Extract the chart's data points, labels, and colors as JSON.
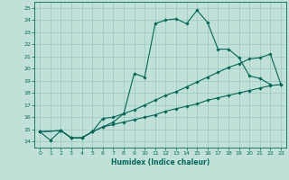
{
  "xlabel": "Humidex (Indice chaleur)",
  "bg_color": "#c0e0d8",
  "grid_color": "#98c8c0",
  "line_color": "#006858",
  "xlim": [
    -0.5,
    23.5
  ],
  "ylim": [
    13.5,
    25.5
  ],
  "xticks": [
    0,
    1,
    2,
    3,
    4,
    5,
    6,
    7,
    8,
    9,
    10,
    11,
    12,
    13,
    14,
    15,
    16,
    17,
    18,
    19,
    20,
    21,
    22,
    23
  ],
  "yticks": [
    14,
    15,
    16,
    17,
    18,
    19,
    20,
    21,
    22,
    23,
    24,
    25
  ],
  "line1_x": [
    0,
    1,
    2,
    3,
    4,
    5,
    6,
    7,
    8,
    9,
    10,
    11,
    12,
    13,
    14,
    15,
    16,
    17,
    18,
    19,
    20,
    21,
    22
  ],
  "line1_y": [
    14.8,
    14.1,
    14.9,
    14.3,
    14.3,
    14.8,
    15.9,
    16.0,
    16.3,
    19.6,
    19.3,
    23.7,
    24.0,
    24.1,
    23.7,
    24.8,
    23.8,
    21.6,
    21.6,
    20.9,
    19.4,
    19.2,
    18.7
  ],
  "line2_x": [
    0,
    2,
    3,
    4,
    5,
    6,
    7,
    8,
    9,
    10,
    11,
    12,
    13,
    14,
    15,
    16,
    17,
    18,
    19,
    20,
    21,
    22,
    23
  ],
  "line2_y": [
    14.8,
    14.9,
    14.3,
    14.3,
    14.8,
    15.2,
    15.6,
    16.3,
    16.6,
    17.0,
    17.4,
    17.8,
    18.1,
    18.5,
    18.9,
    19.3,
    19.7,
    20.1,
    20.4,
    20.8,
    20.9,
    21.2,
    18.7
  ],
  "line3_x": [
    0,
    2,
    3,
    4,
    5,
    6,
    7,
    8,
    9,
    10,
    11,
    12,
    13,
    14,
    15,
    16,
    17,
    18,
    19,
    20,
    21,
    22,
    23
  ],
  "line3_y": [
    14.8,
    14.9,
    14.3,
    14.3,
    14.8,
    15.2,
    15.4,
    15.6,
    15.8,
    16.0,
    16.2,
    16.5,
    16.7,
    16.9,
    17.1,
    17.4,
    17.6,
    17.8,
    18.0,
    18.2,
    18.4,
    18.6,
    18.7
  ]
}
